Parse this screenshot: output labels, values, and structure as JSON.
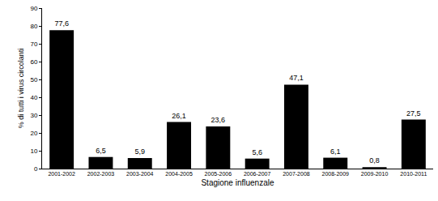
{
  "chart_data": {
    "type": "bar",
    "x_label": "Stagione influenzale",
    "y_label": "% di tutti i virus circolanti",
    "categories": [
      "2001-2002",
      "2002-2003",
      "2003-2004",
      "2004-2005",
      "2005-2006",
      "2006-2007",
      "2007-2008",
      "2008-2009",
      "2009-2010",
      "2010-2011"
    ],
    "values": [
      77.6,
      6.5,
      5.9,
      26.1,
      23.6,
      5.6,
      47.1,
      6.1,
      0.8,
      27.5
    ],
    "value_labels": [
      "77,6",
      "6,5",
      "5,9",
      "26,1",
      "23,6",
      "5,6",
      "47,1",
      "6,1",
      "0,8",
      "27,5"
    ],
    "data_labels": true,
    "color": "#000000",
    "ylim": [
      0,
      90
    ],
    "yticks": [
      0,
      10,
      20,
      30,
      40,
      50,
      60,
      70,
      80,
      90
    ],
    "grid": false
  }
}
